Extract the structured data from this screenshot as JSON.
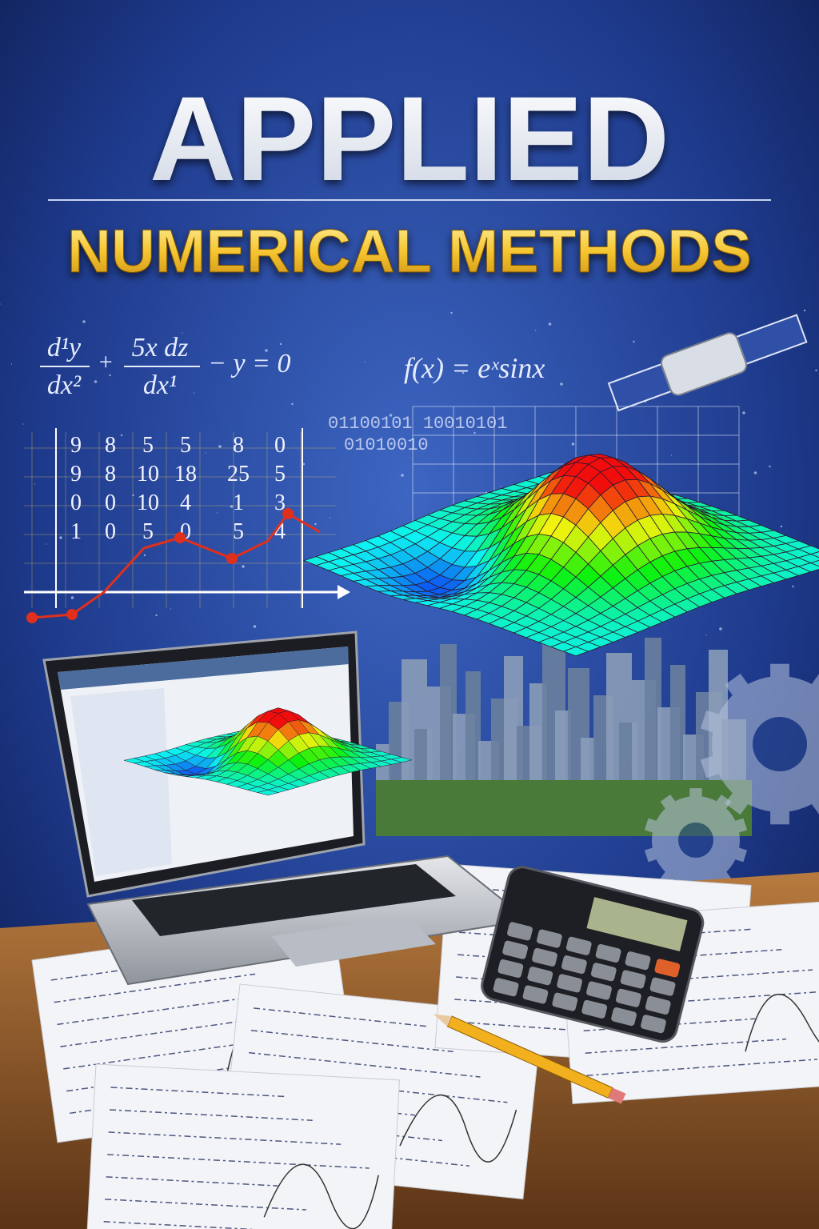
{
  "header": {
    "title": "APPLIED",
    "subtitle": "NUMERICAL METHODS"
  },
  "equations": {
    "ode": {
      "numerator1": "d¹y",
      "denominator1": "dx²",
      "plus": "+",
      "numerator2": "5x  dz",
      "denominator2": "dx¹",
      "rest": "− y = 0"
    },
    "function": "f(x) = eˣsinx"
  },
  "binary": [
    "01100101 10010101",
    "01010010"
  ],
  "table": {
    "rows": [
      [
        "9",
        "8",
        "5",
        "5",
        "8",
        "0"
      ],
      [
        "9",
        "8",
        "10",
        "18",
        "25",
        "5"
      ],
      [
        "0",
        "0",
        "10",
        "4",
        "1",
        "3"
      ],
      [
        "1",
        "0",
        "5",
        "0",
        "5",
        "4"
      ]
    ]
  }
}
